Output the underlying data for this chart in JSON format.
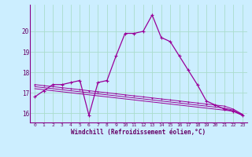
{
  "xlabel": "Windchill (Refroidissement éolien,°C)",
  "bg_color": "#cceeff",
  "grid_color": "#aaddcc",
  "line_color": "#990099",
  "spine_color": "#886688",
  "x_main": [
    0,
    1,
    2,
    3,
    4,
    5,
    6,
    7,
    8,
    9,
    10,
    11,
    12,
    13,
    14,
    15,
    16,
    17,
    18,
    19,
    20,
    21,
    22,
    23
  ],
  "y_main": [
    16.8,
    17.1,
    17.4,
    17.4,
    17.5,
    17.6,
    15.9,
    17.5,
    17.6,
    18.8,
    19.9,
    19.9,
    20.0,
    20.8,
    19.7,
    19.5,
    18.8,
    18.1,
    17.4,
    16.6,
    16.4,
    16.2,
    16.1,
    15.9
  ],
  "y_line1": [
    17.4,
    17.35,
    17.3,
    17.25,
    17.2,
    17.15,
    17.1,
    17.05,
    17.0,
    16.95,
    16.9,
    16.85,
    16.8,
    16.75,
    16.7,
    16.65,
    16.6,
    16.55,
    16.5,
    16.45,
    16.4,
    16.35,
    16.2,
    15.95
  ],
  "y_line2": [
    17.3,
    17.25,
    17.2,
    17.15,
    17.1,
    17.05,
    17.0,
    16.95,
    16.9,
    16.85,
    16.8,
    16.75,
    16.7,
    16.65,
    16.6,
    16.55,
    16.5,
    16.45,
    16.4,
    16.35,
    16.3,
    16.25,
    16.15,
    15.93
  ],
  "y_line3": [
    17.2,
    17.15,
    17.1,
    17.05,
    17.0,
    16.95,
    16.9,
    16.85,
    16.8,
    16.75,
    16.7,
    16.65,
    16.6,
    16.55,
    16.5,
    16.45,
    16.4,
    16.35,
    16.3,
    16.25,
    16.2,
    16.15,
    16.1,
    15.9
  ],
  "ylim": [
    15.55,
    21.3
  ],
  "yticks": [
    16,
    17,
    18,
    19,
    20
  ],
  "xticks": [
    0,
    1,
    2,
    3,
    4,
    5,
    6,
    7,
    8,
    9,
    10,
    11,
    12,
    13,
    14,
    15,
    16,
    17,
    18,
    19,
    20,
    21,
    22,
    23
  ]
}
